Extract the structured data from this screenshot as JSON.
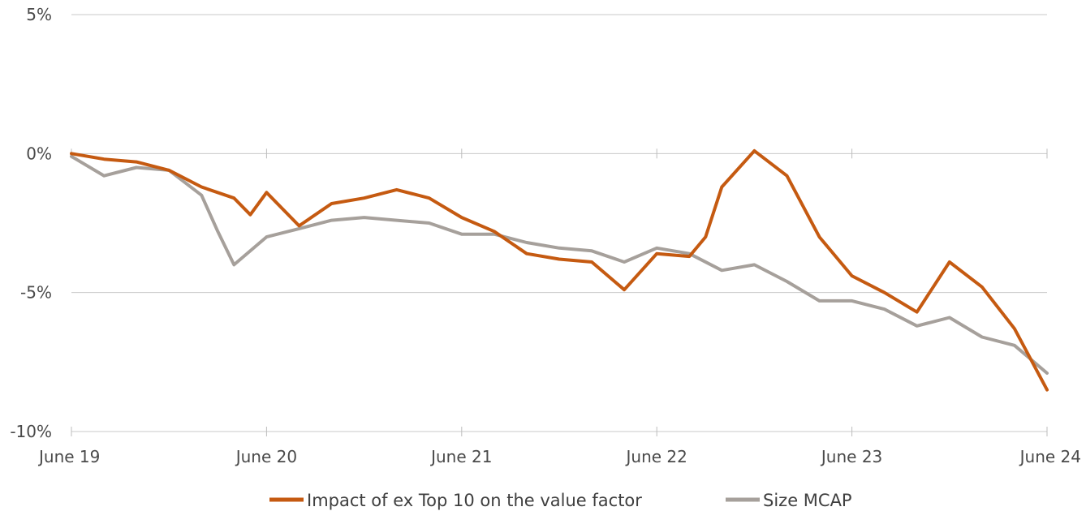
{
  "chart_data": {
    "type": "line",
    "title": "",
    "xlabel": "",
    "ylabel": "",
    "x_tick_labels": [
      "June 19",
      "June 20",
      "June 21",
      "June 22",
      "June 23",
      "June 24"
    ],
    "x_tick_values": [
      "2019-06",
      "2020-06",
      "2021-06",
      "2022-06",
      "2023-06",
      "2024-06"
    ],
    "x_range": [
      "2019-06",
      "2024-06"
    ],
    "y_tick_labels": [
      "5%",
      "0%",
      "-5%",
      "-10%"
    ],
    "y_tick_values": [
      5,
      0,
      -5,
      -10
    ],
    "ylim": [
      -10,
      5
    ],
    "grid": "horizontal",
    "legend_position": "bottom",
    "series": [
      {
        "name": "Impact of ex Top 10 on the value factor",
        "color": "#c55a11",
        "x": [
          "2019-06",
          "2019-08",
          "2019-10",
          "2019-12",
          "2020-02",
          "2020-04",
          "2020-05",
          "2020-06",
          "2020-08",
          "2020-10",
          "2020-12",
          "2021-02",
          "2021-04",
          "2021-06",
          "2021-08",
          "2021-10",
          "2021-12",
          "2022-02",
          "2022-04",
          "2022-06",
          "2022-08",
          "2022-09",
          "2022-10",
          "2022-12",
          "2023-02",
          "2023-04",
          "2023-06",
          "2023-08",
          "2023-10",
          "2023-12",
          "2024-02",
          "2024-04",
          "2024-06"
        ],
        "values": [
          0.0,
          -0.2,
          -0.3,
          -0.6,
          -1.2,
          -1.6,
          -2.2,
          -1.4,
          -2.6,
          -1.8,
          -1.6,
          -1.3,
          -1.6,
          -2.3,
          -2.8,
          -3.6,
          -3.8,
          -3.9,
          -4.9,
          -3.6,
          -3.7,
          -3.0,
          -1.2,
          0.1,
          -0.8,
          -3.0,
          -4.4,
          -5.0,
          -5.7,
          -3.9,
          -4.8,
          -6.3,
          -8.5
        ]
      },
      {
        "name": "Size MCAP",
        "color": "#a6a09b",
        "x": [
          "2019-06",
          "2019-08",
          "2019-10",
          "2019-12",
          "2020-02",
          "2020-03",
          "2020-04",
          "2020-06",
          "2020-08",
          "2020-10",
          "2020-12",
          "2021-02",
          "2021-04",
          "2021-06",
          "2021-08",
          "2021-10",
          "2021-12",
          "2022-02",
          "2022-04",
          "2022-06",
          "2022-08",
          "2022-10",
          "2022-12",
          "2023-02",
          "2023-04",
          "2023-06",
          "2023-08",
          "2023-10",
          "2023-12",
          "2024-02",
          "2024-04",
          "2024-06"
        ],
        "values": [
          -0.1,
          -0.8,
          -0.5,
          -0.6,
          -1.5,
          -2.8,
          -4.0,
          -3.0,
          -2.7,
          -2.4,
          -2.3,
          -2.4,
          -2.5,
          -2.9,
          -2.9,
          -3.2,
          -3.4,
          -3.5,
          -3.9,
          -3.4,
          -3.6,
          -4.2,
          -4.0,
          -4.6,
          -5.3,
          -5.3,
          -5.6,
          -6.2,
          -5.9,
          -6.6,
          -6.9,
          -7.9
        ]
      }
    ]
  }
}
